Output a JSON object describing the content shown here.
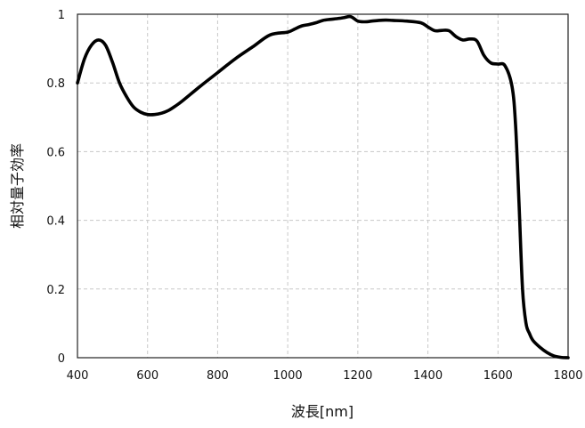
{
  "chart_data": {
    "type": "line",
    "title": "",
    "xlabel": "波長[nm]",
    "ylabel": "相対量子効率",
    "xlim": [
      400,
      1800
    ],
    "ylim": [
      0,
      1
    ],
    "xticks": [
      400,
      600,
      800,
      1000,
      1200,
      1400,
      1600,
      1800
    ],
    "xtick_labels": [
      "400",
      "600",
      "800",
      "1000",
      "1200",
      "1400",
      "1600",
      "1800"
    ],
    "yticks": [
      0,
      0.2,
      0.4,
      0.6,
      0.8,
      1
    ],
    "ytick_labels": [
      "0",
      "0.2",
      "0.4",
      "0.6",
      "0.8",
      "1"
    ],
    "grid": true,
    "legend": "none",
    "line_color": "#000000",
    "series": [
      {
        "x": [
          400,
          420,
          440,
          460,
          480,
          500,
          520,
          540,
          560,
          580,
          600,
          620,
          640,
          660,
          680,
          700,
          750,
          800,
          850,
          900,
          950,
          1000,
          1020,
          1040,
          1060,
          1080,
          1100,
          1120,
          1140,
          1160,
          1180,
          1200,
          1220,
          1240,
          1260,
          1280,
          1300,
          1340,
          1380,
          1400,
          1420,
          1440,
          1460,
          1480,
          1500,
          1520,
          1540,
          1560,
          1580,
          1600,
          1620,
          1640,
          1650,
          1660,
          1670,
          1680,
          1690,
          1700,
          1720,
          1740,
          1760,
          1780,
          1800
        ],
        "y": [
          0.8,
          0.87,
          0.91,
          0.925,
          0.91,
          0.86,
          0.8,
          0.76,
          0.73,
          0.715,
          0.708,
          0.708,
          0.712,
          0.72,
          0.733,
          0.748,
          0.79,
          0.83,
          0.87,
          0.905,
          0.94,
          0.948,
          0.957,
          0.966,
          0.97,
          0.975,
          0.982,
          0.985,
          0.987,
          0.99,
          0.993,
          0.98,
          0.978,
          0.98,
          0.982,
          0.983,
          0.982,
          0.98,
          0.975,
          0.963,
          0.952,
          0.953,
          0.952,
          0.935,
          0.925,
          0.928,
          0.922,
          0.88,
          0.858,
          0.855,
          0.85,
          0.79,
          0.68,
          0.45,
          0.2,
          0.1,
          0.07,
          0.05,
          0.03,
          0.015,
          0.005,
          0.001,
          0.0
        ]
      }
    ]
  }
}
